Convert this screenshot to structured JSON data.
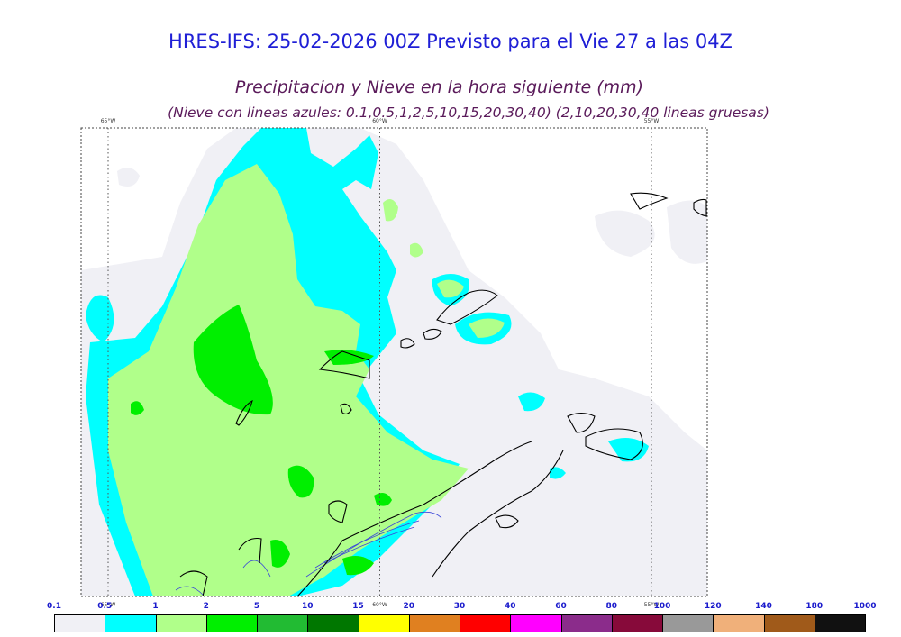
{
  "chart_data": {
    "type": "heatmap",
    "title": "HRES-IFS: 25-02-2026 00Z Previsto para el Vie 27 a las 04Z",
    "subtitle": "Precipitacion y Nieve en la hora siguiente (mm)",
    "subtitle2": "(Nieve con lineas azules: 0.1,0.5,1,2,5,10,15,20,30,40)  (2,10,20,30,40 lineas gruesas)",
    "meridians": [
      {
        "label": "65°W",
        "lon": -65
      },
      {
        "label": "60°W",
        "lon": -60
      },
      {
        "label": "55°W",
        "lon": -55
      }
    ],
    "colorbar": {
      "levels": [
        "0.1",
        "0.5",
        "1",
        "2",
        "5",
        "10",
        "15",
        "20",
        "30",
        "40",
        "60",
        "80",
        "100",
        "120",
        "140",
        "180",
        "1000"
      ],
      "colors": [
        "#f0f0f5",
        "#00ffff",
        "#b0ff8a",
        "#00ef00",
        "#22bb33",
        "#007700",
        "#ffff00",
        "#e08020",
        "#ff0000",
        "#ff00ff",
        "#8b2c8b",
        "#870a3a",
        "#999999",
        "#f0b07a",
        "#a05a1a",
        "#111111"
      ]
    }
  },
  "colors": {
    "light": "#f0f0f5",
    "cyan": "#00ffff",
    "lightgreen": "#b0ff8a",
    "green": "#00ef00",
    "coast": "#000000",
    "snow": "#3a46d9"
  }
}
